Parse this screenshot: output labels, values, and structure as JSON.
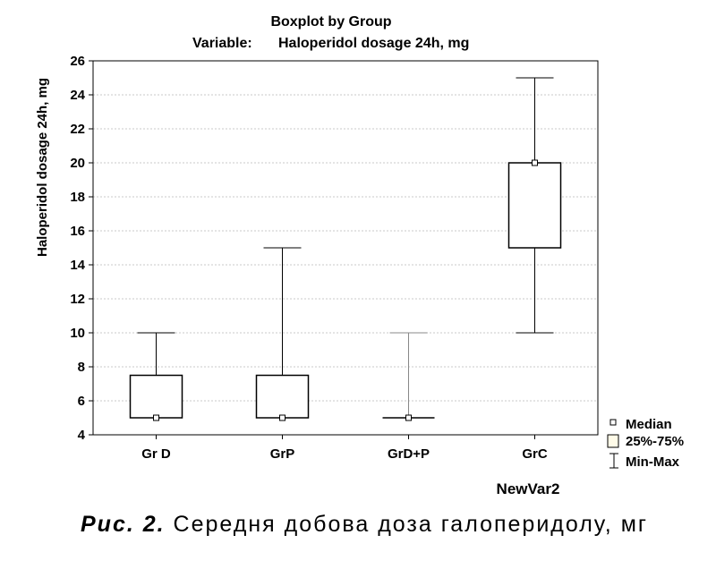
{
  "chart_data": {
    "type": "boxplot",
    "title": "Boxplot by Group",
    "subtitle_prefix": "Variable:",
    "subtitle_variable": "Haloperidol dosage 24h, mg",
    "xlabel": "NewVar2",
    "ylabel": "Haloperidol dosage 24h, mg",
    "ylim": [
      4,
      26
    ],
    "yticks": [
      "4",
      "6",
      "8",
      "10",
      "12",
      "14",
      "16",
      "18",
      "20",
      "22",
      "24",
      "26"
    ],
    "grid": true,
    "categories": [
      "Gr D",
      "GrP",
      "GrD+P",
      "GrC"
    ],
    "series": [
      {
        "category": "Gr D",
        "min": 5,
        "q1": 5,
        "median": 5,
        "q3": 7.5,
        "max": 10
      },
      {
        "category": "GrP",
        "min": 5,
        "q1": 5,
        "median": 5,
        "q3": 7.5,
        "max": 15
      },
      {
        "category": "GrD+P",
        "min": 5,
        "q1": 5,
        "median": 5,
        "q3": 5,
        "max": 10
      },
      {
        "category": "GrC",
        "min": 10,
        "q1": 15,
        "median": 20,
        "q3": 20,
        "max": 25
      }
    ],
    "legend": {
      "position": "bottom-right",
      "items": [
        "Median",
        "25%-75%",
        "Min-Max"
      ]
    }
  },
  "caption": {
    "label": "Рис. 2.",
    "text": "Середня добова доза галоперидолу, мг"
  }
}
